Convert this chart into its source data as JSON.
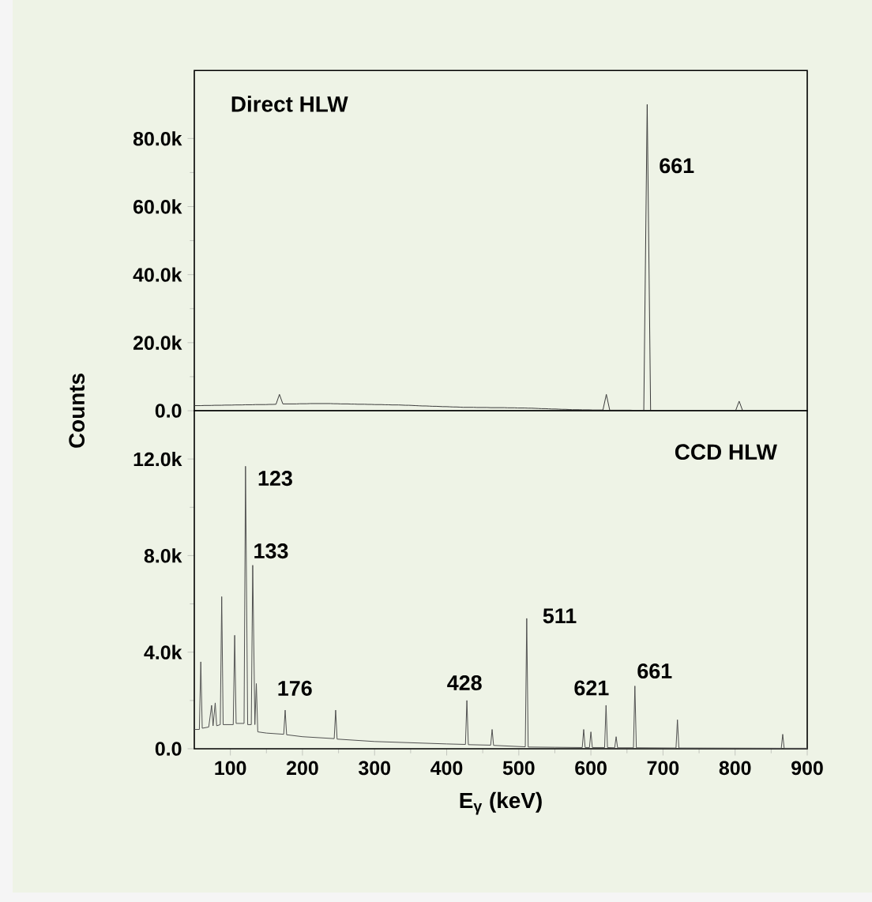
{
  "chart_data": [
    {
      "type": "line",
      "title": "Direct HLW",
      "ylabel": "Counts",
      "color": "#3a3a3a",
      "tick_labels": "y",
      "categories": [
        null,
        null,
        null,
        null,
        null,
        null,
        null,
        null,
        null,
        null,
        null,
        null,
        null,
        null,
        null,
        null,
        null,
        null,
        null,
        null,
        null,
        null,
        null,
        null,
        null,
        null,
        null,
        null,
        null,
        null,
        null,
        null,
        null,
        null,
        null,
        null,
        null,
        null,
        null,
        null,
        null,
        null,
        null,
        null,
        null,
        null,
        null,
        null,
        null,
        null,
        null,
        null,
        null,
        null,
        null,
        null,
        null,
        null,
        null,
        null,
        null,
        null,
        null,
        null,
        null,
        null,
        null,
        null,
        null,
        null,
        null,
        null,
        null,
        null,
        null,
        null,
        null,
        null,
        null,
        null,
        null,
        null,
        null,
        null,
        null,
        null,
        null,
        null,
        null,
        null,
        null,
        null,
        null,
        null,
        null,
        null,
        null,
        null,
        null,
        null,
        null,
        null,
        null,
        null,
        null,
        null,
        null,
        null,
        null,
        null,
        null,
        null,
        null,
        null,
        null,
        null,
        null,
        null,
        null,
        null,
        null,
        null,
        null,
        null,
        null,
        null,
        null,
        null,
        null,
        null,
        null,
        null,
        null,
        null,
        null,
        null,
        null,
        null,
        null,
        null,
        null,
        null,
        null,
        null,
        null,
        null,
        null,
        null,
        null,
        null,
        null,
        null,
        null,
        null,
        null,
        null,
        null,
        null,
        null,
        null,
        null,
        null,
        null,
        null,
        null,
        null,
        null,
        null,
        null,
        null,
        null,
        null,
        null,
        null,
        null,
        null,
        null,
        null,
        null,
        null,
        null
      ],
      "values": [
        1500,
        1500,
        1500,
        1550,
        1550,
        1550,
        1600,
        1600,
        1600,
        1650,
        1650,
        1650,
        1700,
        1700,
        1700,
        1750,
        1750,
        1750,
        1800,
        1800,
        1800,
        1800,
        1850,
        1850,
        1900,
        4800,
        2000,
        2000,
        2000,
        2000,
        2000,
        2050,
        2050,
        2050,
        2100,
        2100,
        2100,
        2100,
        2100,
        2100,
        2100,
        2050,
        2050,
        2000,
        2000,
        2000,
        1950,
        1950,
        1900,
        1900,
        1900,
        1850,
        1850,
        1800,
        1800,
        1800,
        1750,
        1750,
        1700,
        1700,
        1700,
        1650,
        1600,
        1600,
        1550,
        1500,
        1450,
        1400,
        1400,
        1350,
        1300,
        1300,
        1250,
        1200,
        1200,
        1150,
        1100,
        1100,
        1050,
        1000,
        1000,
        1000,
        1000,
        950,
        950,
        950,
        950,
        900,
        900,
        900,
        900,
        900,
        850,
        850,
        850,
        800,
        800,
        800,
        750,
        750,
        700,
        650,
        600,
        600,
        550,
        500,
        500,
        450,
        400,
        400,
        350,
        300,
        300,
        300,
        250,
        250,
        250,
        200,
        200,
        200,
        200,
        4800,
        150,
        150,
        150,
        150,
        150,
        150,
        150,
        100,
        100,
        100,
        100,
        90000,
        100,
        100,
        100,
        100,
        100,
        100,
        100,
        100,
        100,
        100,
        100,
        100,
        100,
        100,
        100,
        100,
        100,
        100,
        100,
        100,
        100,
        100,
        100,
        100,
        100,
        100,
        2800,
        100,
        100,
        100,
        100,
        100,
        100,
        100,
        100,
        100,
        100,
        50,
        50,
        50,
        50,
        50,
        50,
        50,
        50,
        50,
        50
      ],
      "ylim": [
        0,
        100000
      ],
      "yticks": [
        {
          "value": 0,
          "label": "0.0"
        },
        {
          "value": 20000,
          "label": "20.0k"
        },
        {
          "value": 40000,
          "label": "40.0k"
        },
        {
          "value": 60000,
          "label": "60.0k"
        },
        {
          "value": 80000,
          "label": "80.0k"
        }
      ],
      "annotations": [
        "661"
      ]
    },
    {
      "type": "line",
      "title": "CCD HLW",
      "xlabel": "E$_{γ}$ (keV)",
      "color": "#505050",
      "x": [
        50,
        57,
        59,
        61,
        70,
        74,
        76,
        79,
        81,
        86,
        88,
        90,
        104,
        106,
        108,
        119,
        121,
        124,
        129,
        131,
        134,
        136,
        138,
        150,
        174,
        176,
        178,
        200,
        244,
        246,
        248,
        300,
        400,
        426,
        428,
        430,
        461,
        463,
        465,
        509,
        511,
        513,
        550,
        588,
        590,
        592,
        598,
        600,
        602,
        619,
        621,
        623,
        633,
        635,
        637,
        659,
        661,
        663,
        718,
        720,
        722,
        864,
        866,
        868,
        900
      ],
      "values": [
        800,
        800,
        3600,
        850,
        900,
        1800,
        950,
        1900,
        950,
        1000,
        6300,
        1000,
        1000,
        4700,
        1050,
        1050,
        11700,
        1000,
        1000,
        7600,
        1000,
        2700,
        700,
        650,
        600,
        1600,
        580,
        500,
        420,
        1600,
        400,
        300,
        200,
        180,
        2000,
        170,
        150,
        800,
        140,
        80,
        5400,
        70,
        60,
        50,
        800,
        50,
        50,
        700,
        50,
        50,
        1800,
        50,
        40,
        500,
        40,
        40,
        2600,
        40,
        30,
        1200,
        30,
        20,
        600,
        20,
        20
      ],
      "xlim": [
        50,
        900
      ],
      "xticks": [
        100,
        200,
        300,
        400,
        500,
        600,
        700,
        800,
        900
      ],
      "ylim": [
        0,
        14000
      ],
      "yticks": [
        {
          "value": 0,
          "label": "0.0"
        },
        {
          "value": 4000,
          "label": "4.0k"
        },
        {
          "value": 8000,
          "label": "8.0k"
        },
        {
          "value": 12000,
          "label": "12.0k"
        }
      ],
      "annotations": [
        "123",
        "133",
        "176",
        "428",
        "511",
        "621",
        "661"
      ]
    }
  ]
}
